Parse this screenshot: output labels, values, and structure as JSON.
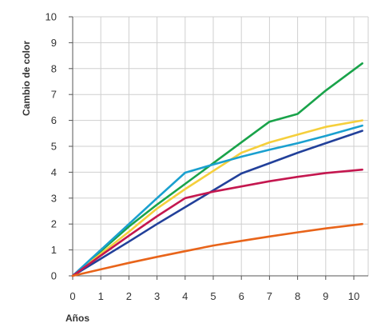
{
  "chart_data": {
    "type": "line",
    "title": "",
    "xlabel": "Años",
    "ylabel": "Cambio de color",
    "xlim": [
      0,
      10.4
    ],
    "ylim": [
      0,
      10
    ],
    "x_ticks": [
      "0",
      "1",
      "2",
      "3",
      "4",
      "5",
      "6",
      "7",
      "8",
      "9",
      "10"
    ],
    "y_ticks": [
      "0",
      "1",
      "2",
      "3",
      "4",
      "5",
      "6",
      "7",
      "8",
      "9",
      "10"
    ],
    "grid": true,
    "legend": "none",
    "series": [
      {
        "color": "#19a34a",
        "x": [
          0,
          1,
          2,
          3,
          4,
          5,
          6,
          7,
          8,
          9,
          10.3
        ],
        "y": [
          0,
          0.95,
          1.9,
          2.75,
          3.55,
          4.35,
          5.15,
          5.95,
          6.25,
          7.15,
          8.2
        ]
      },
      {
        "color": "#f5cf3c",
        "x": [
          0,
          1,
          2,
          3,
          4,
          5,
          6,
          7,
          8,
          9,
          10.3
        ],
        "y": [
          0,
          0.85,
          1.7,
          2.6,
          3.35,
          4.05,
          4.75,
          5.15,
          5.45,
          5.75,
          6.0
        ]
      },
      {
        "color": "#1aa0cf",
        "x": [
          0,
          1,
          2,
          3,
          4,
          5,
          6,
          7,
          8,
          9,
          10.3
        ],
        "y": [
          0,
          1.0,
          2.0,
          3.0,
          3.98,
          4.3,
          4.6,
          4.87,
          5.12,
          5.4,
          5.8
        ]
      },
      {
        "color": "#22409a",
        "x": [
          0,
          1,
          2,
          3,
          4,
          5,
          6,
          7,
          8,
          9,
          10.3
        ],
        "y": [
          0,
          0.66,
          1.32,
          2.0,
          2.65,
          3.3,
          3.95,
          4.35,
          4.75,
          5.12,
          5.6
        ]
      },
      {
        "color": "#c4174f",
        "x": [
          0,
          1,
          2,
          3,
          4,
          5,
          6,
          7,
          8,
          9,
          10.3
        ],
        "y": [
          0,
          0.78,
          1.55,
          2.3,
          3.0,
          3.25,
          3.45,
          3.65,
          3.82,
          3.97,
          4.1
        ]
      },
      {
        "color": "#e8641a",
        "x": [
          0,
          1,
          2,
          3,
          4,
          5,
          6,
          7,
          8,
          9,
          10.3
        ],
        "y": [
          0,
          0.25,
          0.5,
          0.73,
          0.95,
          1.17,
          1.35,
          1.52,
          1.68,
          1.83,
          2.0
        ]
      }
    ]
  }
}
